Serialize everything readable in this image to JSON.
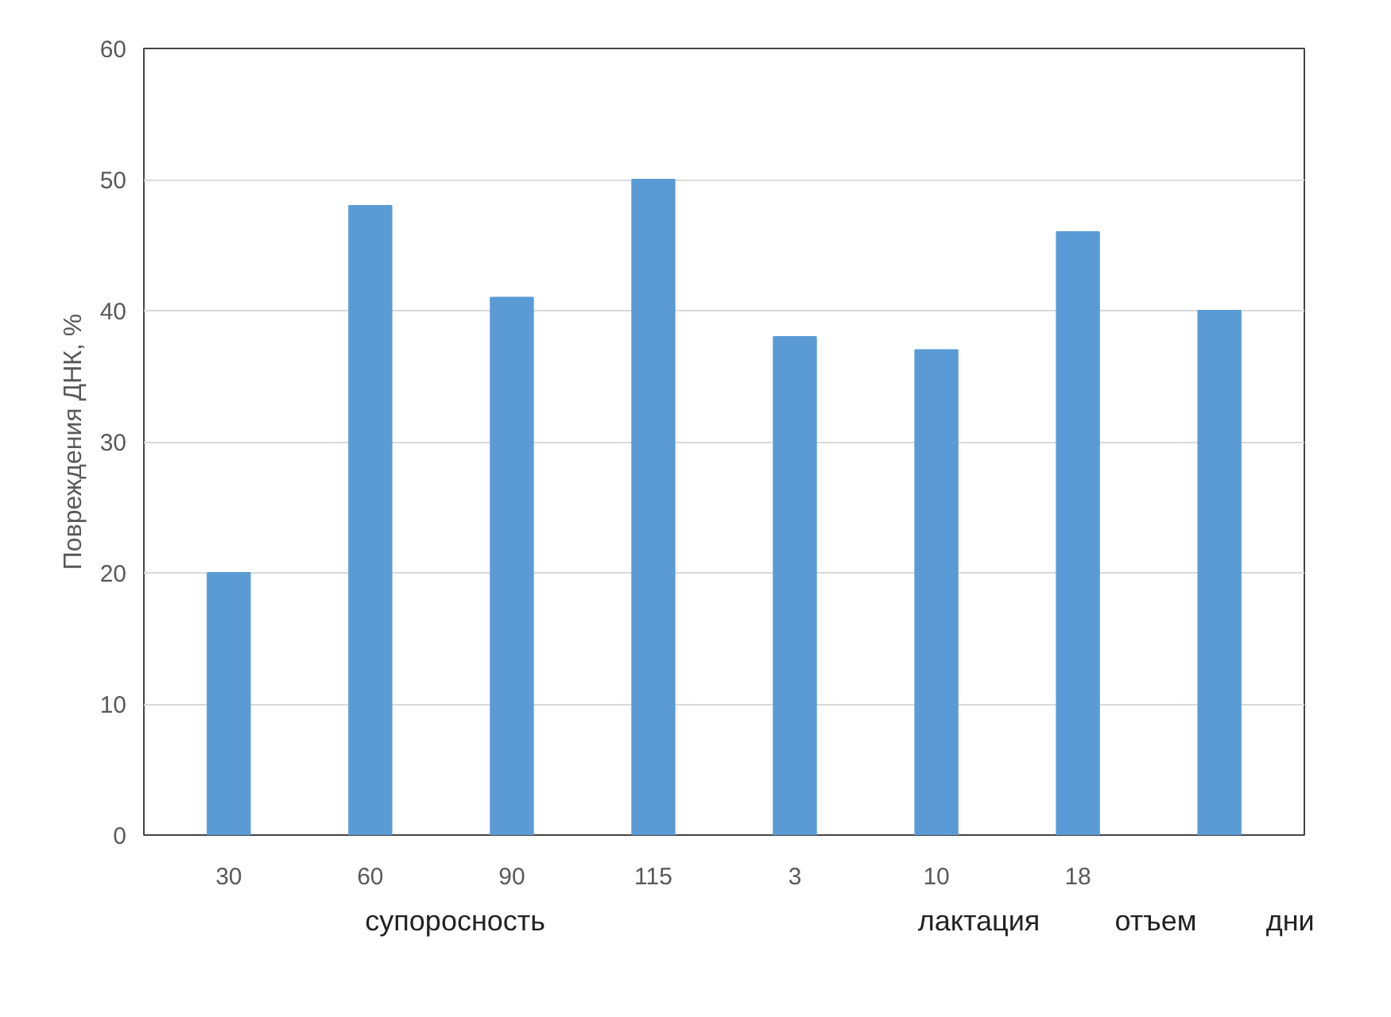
{
  "chart_data": {
    "type": "bar",
    "ylabel": "Повреждения ДНК, %",
    "categories": [
      "30",
      "60",
      "90",
      "115",
      "3",
      "10",
      "18",
      null
    ],
    "values": [
      20,
      48,
      41,
      50,
      38,
      37,
      46,
      40
    ],
    "color": "#5b9bd5",
    "ylim": [
      0,
      60
    ],
    "yticks": [
      0,
      10,
      20,
      30,
      40,
      50,
      60
    ],
    "grid": "y",
    "annotations": [
      "супоросность",
      "лактация",
      "отъем",
      "дни"
    ]
  }
}
